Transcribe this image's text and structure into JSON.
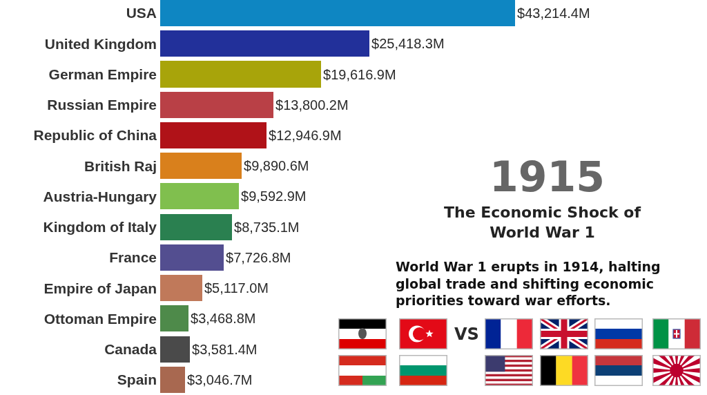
{
  "chart_data": {
    "type": "bar",
    "orientation": "horizontal",
    "title": "The Economic Shock of World War 1",
    "subtitle": "World War 1 erupts in 1914, halting global trade and shifting economic priorities toward war efforts.",
    "annotations": [
      "1915",
      "VS"
    ],
    "categories": [
      "USA",
      "United Kingdom",
      "German Empire",
      "Russian Empire",
      "Republic of China",
      "British Raj",
      "Austria-Hungary",
      "Kingdom of Italy",
      "France",
      "Empire of Japan",
      "Ottoman Empire",
      "Canada",
      "Spain"
    ],
    "values": [
      43214.4,
      25418.3,
      19616.9,
      13800.2,
      12946.9,
      9890.6,
      9592.9,
      8735.1,
      7726.8,
      5117.0,
      3468.8,
      3581.4,
      3046.7
    ],
    "value_labels": [
      "$43,214.4M",
      "$25,418.3M",
      "$19,616.9M",
      "$13,800.2M",
      "$12,946.9M",
      "$9,890.6M",
      "$9,592.9M",
      "$8,735.1M",
      "$7,726.8M",
      "$5,117.0M",
      "$3,468.8M",
      "$3,581.4M",
      "$3,046.7M"
    ],
    "colors": [
      "#0e86c2",
      "#22309a",
      "#a8a40a",
      "#b94046",
      "#b01218",
      "#d9801c",
      "#80bf4e",
      "#2a8050",
      "#534e90",
      "#c0795a",
      "#4e8a4a",
      "#4a4a4a",
      "#a86850"
    ]
  }
}
